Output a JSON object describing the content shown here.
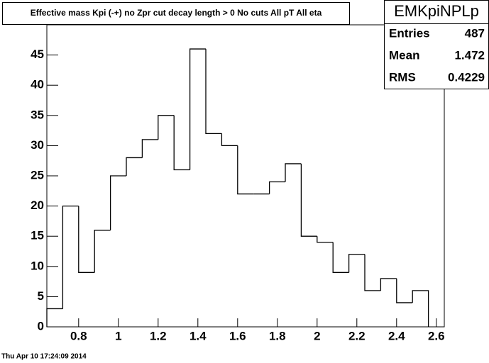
{
  "chart_data": {
    "type": "histogram",
    "title": "Effective mass Kpi (-+) no Zpr cut decay length > 0  No cuts All pT All eta",
    "bins": [
      0.64,
      0.72,
      0.8,
      0.88,
      0.96,
      1.04,
      1.12,
      1.2,
      1.28,
      1.36,
      1.44,
      1.52,
      1.6,
      1.68,
      1.76,
      1.84,
      1.92,
      2.0,
      2.08,
      2.16,
      2.24,
      2.32,
      2.4,
      2.48,
      2.56
    ],
    "values": [
      3,
      20,
      9,
      16,
      25,
      28,
      31,
      35,
      26,
      46,
      32,
      30,
      22,
      22,
      24,
      27,
      15,
      14,
      9,
      12,
      6,
      8,
      4,
      6
    ],
    "color": "#000000",
    "xlim": [
      0.64,
      2.64
    ],
    "xticks": [
      0.8,
      1,
      1.2,
      1.4,
      1.6,
      1.8,
      2,
      2.2,
      2.4,
      2.6
    ],
    "ylim": [
      0,
      50
    ],
    "yticks": [
      0,
      5,
      10,
      15,
      20,
      25,
      30,
      35,
      40,
      45
    ],
    "stats": {
      "name": "EMKpiNPLp",
      "rows": [
        {
          "label": "Entries",
          "value": 487
        },
        {
          "label": "Mean",
          "value": 1.472
        },
        {
          "label": "RMS",
          "value": 0.4229
        }
      ]
    },
    "timestamp": "Thu Apr 10 17:24:09 2014"
  }
}
